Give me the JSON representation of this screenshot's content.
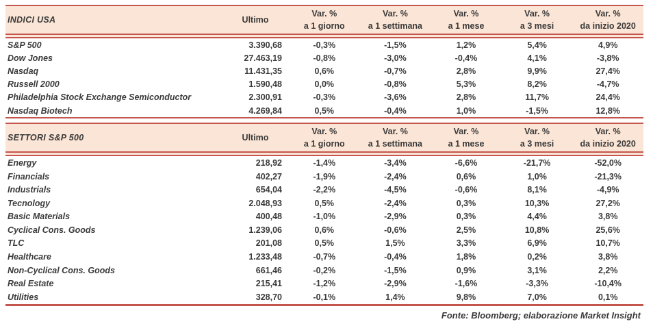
{
  "colors": {
    "accent": "#c4564e",
    "header_bg": "#fbe5d6",
    "text": "#3a3a3a"
  },
  "footer": "Fonte: Bloomberg; elaborazione Market Insight",
  "tables": [
    {
      "title": "INDICI USA",
      "ultimo_label": "Ultimo",
      "var_headers": [
        {
          "line1": "Var. %",
          "line2": "a 1 giorno"
        },
        {
          "line1": "Var. %",
          "line2": "a 1 settimana"
        },
        {
          "line1": "Var. %",
          "line2": "a 1 mese"
        },
        {
          "line1": "Var. %",
          "line2": "a 3 mesi"
        },
        {
          "line1": "Var. %",
          "line2": "da inizio 2020"
        }
      ],
      "rows": [
        {
          "label": "S&P 500",
          "ultimo": "3.390,68",
          "vars": [
            "-0,3%",
            "-1,5%",
            "1,2%",
            "5,4%",
            "4,9%"
          ]
        },
        {
          "label": "Dow Jones",
          "ultimo": "27.463,19",
          "vars": [
            "-0,8%",
            "-3,0%",
            "-0,4%",
            "4,1%",
            "-3,8%"
          ]
        },
        {
          "label": "Nasdaq",
          "ultimo": "11.431,35",
          "vars": [
            "0,6%",
            "-0,7%",
            "2,8%",
            "9,9%",
            "27,4%"
          ]
        },
        {
          "label": "Russell 2000",
          "ultimo": "1.590,48",
          "vars": [
            "0,0%",
            "-0,8%",
            "5,3%",
            "8,2%",
            "-4,7%"
          ]
        },
        {
          "label": "Philadelphia Stock Exchange Semiconductor",
          "ultimo": "2.300,91",
          "vars": [
            "-0,3%",
            "-3,6%",
            "2,8%",
            "11,7%",
            "24,4%"
          ]
        },
        {
          "label": "Nasdaq Biotech",
          "ultimo": "4.269,84",
          "vars": [
            "0,5%",
            "-0,4%",
            "1,0%",
            "-1,5%",
            "12,8%"
          ]
        }
      ]
    },
    {
      "title": "SETTORI S&P 500",
      "ultimo_label": "Ultimo",
      "var_headers": [
        {
          "line1": "Var. %",
          "line2": "a 1 giorno"
        },
        {
          "line1": "Var. %",
          "line2": "a 1 settimana"
        },
        {
          "line1": "Var. %",
          "line2": "a 1 mese"
        },
        {
          "line1": "Var. %",
          "line2": "a 3 mesi"
        },
        {
          "line1": "Var. %",
          "line2": "da inizio 2020"
        }
      ],
      "rows": [
        {
          "label": "Energy",
          "ultimo": "218,92",
          "vars": [
            "-1,4%",
            "-3,4%",
            "-6,6%",
            "-21,7%",
            "-52,0%"
          ]
        },
        {
          "label": "Financials",
          "ultimo": "402,27",
          "vars": [
            "-1,9%",
            "-2,4%",
            "0,6%",
            "1,0%",
            "-21,3%"
          ]
        },
        {
          "label": "Industrials",
          "ultimo": "654,04",
          "vars": [
            "-2,2%",
            "-4,5%",
            "-0,6%",
            "8,1%",
            "-4,9%"
          ]
        },
        {
          "label": "Tecnology",
          "ultimo": "2.048,93",
          "vars": [
            "0,5%",
            "-2,4%",
            "0,3%",
            "10,3%",
            "27,2%"
          ]
        },
        {
          "label": "Basic Materials",
          "ultimo": "400,48",
          "vars": [
            "-1,0%",
            "-2,9%",
            "0,3%",
            "4,4%",
            "3,8%"
          ]
        },
        {
          "label": "Cyclical Cons. Goods",
          "ultimo": "1.239,06",
          "vars": [
            "0,6%",
            "-0,6%",
            "2,5%",
            "10,8%",
            "25,6%"
          ]
        },
        {
          "label": "TLC",
          "ultimo": "201,08",
          "vars": [
            "0,5%",
            "1,5%",
            "3,3%",
            "6,9%",
            "10,7%"
          ]
        },
        {
          "label": "Healthcare",
          "ultimo": "1.233,48",
          "vars": [
            "-0,7%",
            "-0,4%",
            "1,8%",
            "0,2%",
            "3,8%"
          ]
        },
        {
          "label": "Non-Cyclical Cons. Goods",
          "ultimo": "661,46",
          "vars": [
            "-0,2%",
            "-1,5%",
            "0,9%",
            "3,1%",
            "2,2%"
          ]
        },
        {
          "label": "Real Estate",
          "ultimo": "215,41",
          "vars": [
            "-1,2%",
            "-2,9%",
            "-1,6%",
            "-3,3%",
            "-10,4%"
          ]
        },
        {
          "label": "Utilities",
          "ultimo": "328,70",
          "vars": [
            "-0,1%",
            "1,4%",
            "9,8%",
            "7,0%",
            "0,1%"
          ]
        }
      ]
    }
  ]
}
